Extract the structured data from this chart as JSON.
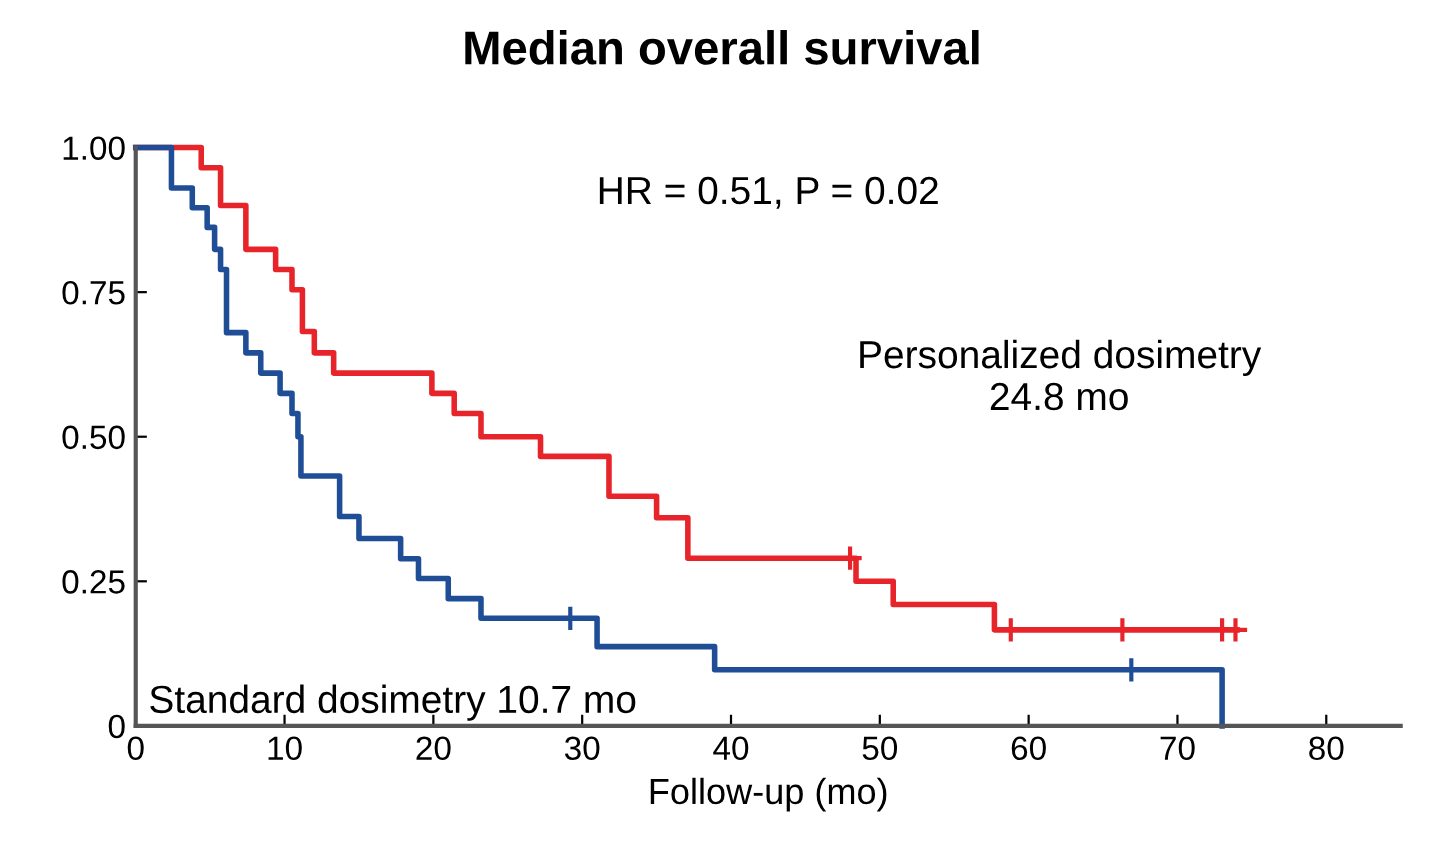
{
  "chart_data": {
    "type": "step",
    "title": "Median overall survival",
    "xlabel": "Follow-up (mo)",
    "annotations": [
      "HR = 0.51, P = 0.02",
      "Personalized dosimetry\n24.8 mo",
      "Standard dosimetry 10.7 mo"
    ],
    "series": [
      {
        "color": "#e8242b",
        "x": [
          0,
          4.4,
          5.7,
          7.4,
          9.4,
          10.5,
          11.2,
          12.0,
          13.3,
          19.9,
          21.4,
          23.2,
          27.2,
          31.8,
          35.0,
          37.1,
          48.4,
          50.9,
          57.7,
          74.0
        ],
        "values": [
          1.0,
          0.965,
          0.9,
          0.824,
          0.789,
          0.754,
          0.682,
          0.645,
          0.61,
          0.575,
          0.54,
          0.5,
          0.466,
          0.397,
          0.36,
          0.29,
          0.25,
          0.21,
          0.166,
          0.166
        ]
      },
      {
        "color": "#1f4e96",
        "x": [
          0,
          2.4,
          3.8,
          4.8,
          5.3,
          5.7,
          6.1,
          7.4,
          8.4,
          9.7,
          10.5,
          10.9,
          11.1,
          13.7,
          15.0,
          17.8,
          19.0,
          21.0,
          23.2,
          31.0,
          38.9,
          73.0,
          73.0
        ],
        "values": [
          1.0,
          0.93,
          0.896,
          0.862,
          0.824,
          0.789,
          0.68,
          0.645,
          0.61,
          0.575,
          0.54,
          0.5,
          0.432,
          0.362,
          0.324,
          0.289,
          0.255,
          0.22,
          0.186,
          0.137,
          0.097,
          0.097,
          0
        ]
      },
      {
        "type": "scatter",
        "marker": "cross",
        "color": "#e8242b",
        "x": [
          48.0,
          58.8,
          66.3,
          73.0,
          73.9
        ],
        "values": [
          0.29,
          0.166,
          0.166,
          0.166,
          0.166
        ]
      },
      {
        "type": "scatter",
        "marker": "cross",
        "color": "#1f4e96",
        "x": [
          29.2,
          66.9
        ],
        "values": [
          0.186,
          0.097
        ]
      }
    ],
    "xlim": [
      0,
      85
    ],
    "xticks": [
      0,
      10,
      20,
      30,
      40,
      50,
      60,
      70,
      80
    ],
    "ylim": [
      0,
      1.0
    ],
    "yticks": [
      {
        "value": 0,
        "label": "0"
      },
      {
        "value": 0.25,
        "label": "0.25"
      },
      {
        "value": 0.5,
        "label": "0.50"
      },
      {
        "value": 0.75,
        "label": "0.75"
      },
      {
        "value": 1.0,
        "label": "1.00"
      }
    ],
    "grid": false,
    "legend": false
  }
}
